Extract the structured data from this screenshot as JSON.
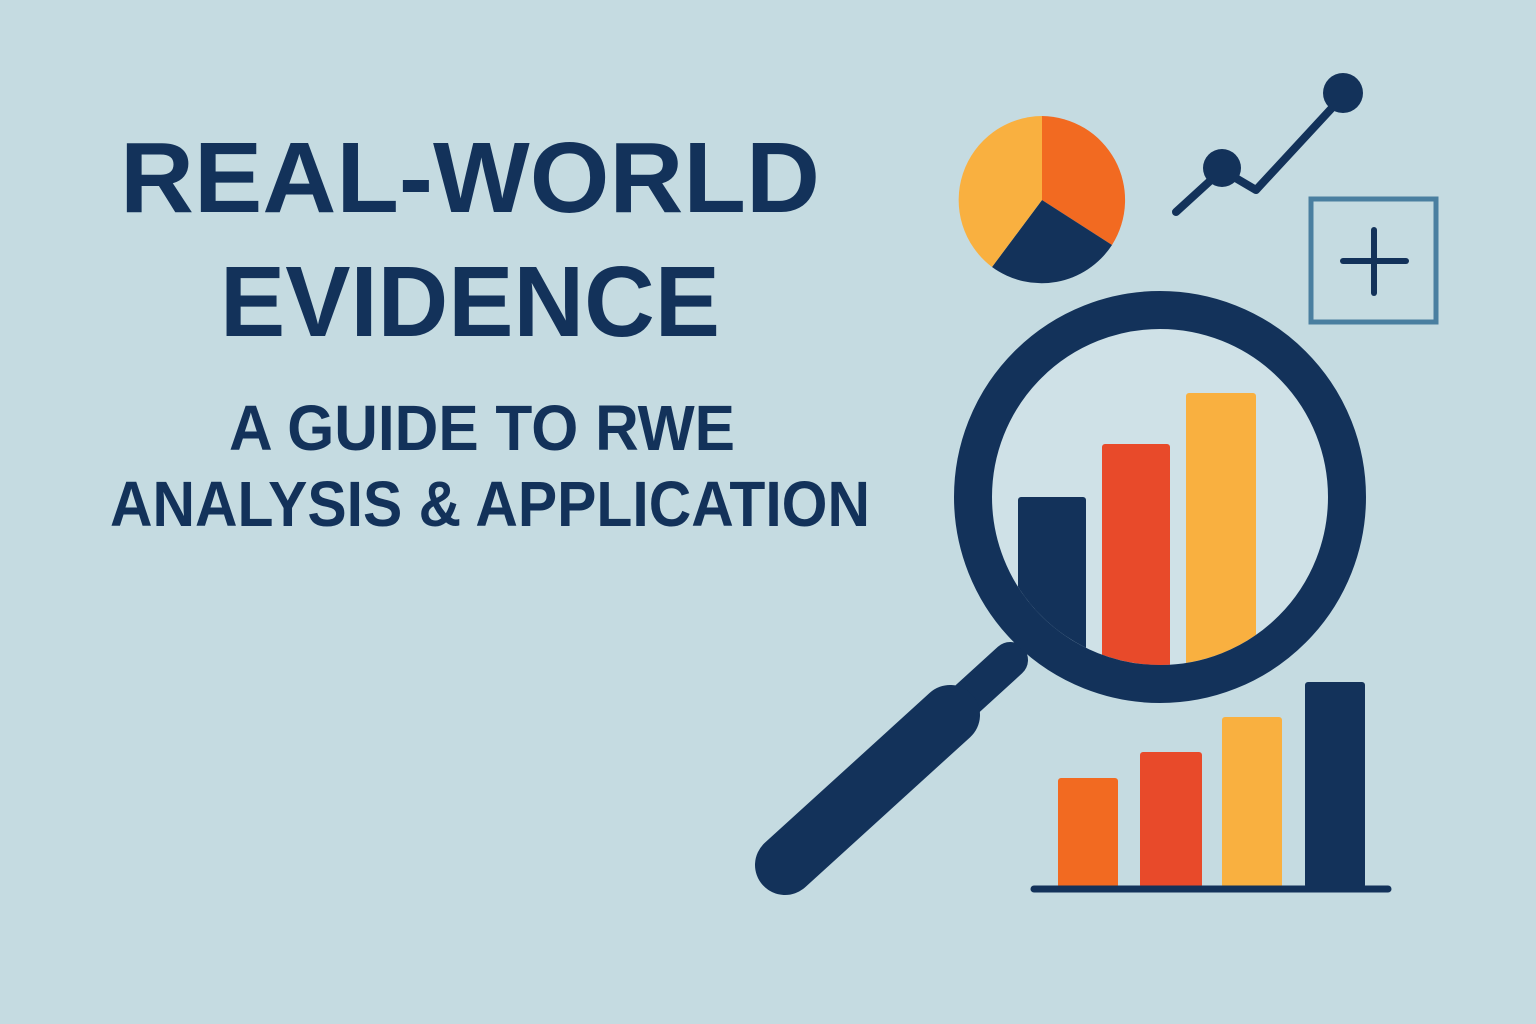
{
  "title": {
    "line1": "REAL-WORLD",
    "line2": "EVIDENCE"
  },
  "subtitle": {
    "line1": "A GUIDE TO RWE",
    "line2": "ANALYSIS & APPLICATION"
  },
  "icons": [
    "pie-chart-icon",
    "line-chart-icon",
    "plus-box-icon",
    "magnifying-glass-icon",
    "bar-chart-icon"
  ],
  "colors": {
    "background": "#c5dbe1",
    "navy": "#13325a",
    "orange": "#f26a21",
    "red": "#e84a2a",
    "yellow": "#f9b040",
    "steel_blue": "#4a7fa0"
  }
}
